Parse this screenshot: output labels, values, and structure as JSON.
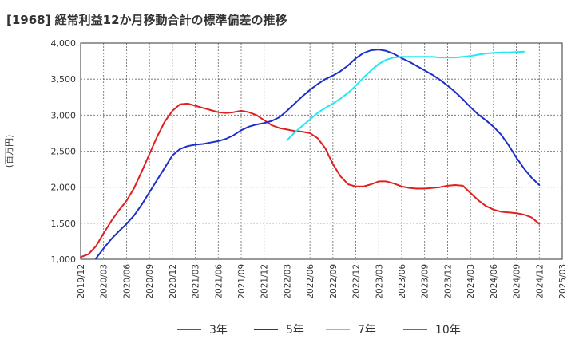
{
  "chart_data": {
    "type": "line",
    "title": "[1968]  経常利益12か月移動合計の標準偏差の推移",
    "ylabel": "(百万円)",
    "xlabel": "",
    "ylim": [
      1000,
      4000
    ],
    "yticks": [
      1000,
      1500,
      2000,
      2500,
      3000,
      3500,
      4000
    ],
    "ytick_labels": [
      "1,000",
      "1,500",
      "2,000",
      "2,500",
      "3,000",
      "3,500",
      "4,000"
    ],
    "xticks": [
      "2019/12",
      "2020/03",
      "2020/06",
      "2020/09",
      "2020/12",
      "2021/03",
      "2021/06",
      "2021/09",
      "2021/12",
      "2022/03",
      "2022/06",
      "2022/09",
      "2022/12",
      "2023/03",
      "2023/06",
      "2023/09",
      "2023/12",
      "2024/03",
      "2024/06",
      "2024/09",
      "2024/12",
      "2025/03"
    ],
    "grid": true,
    "legend_position": "bottom",
    "series": [
      {
        "name": "3年",
        "color": "#e02020",
        "start_month": 0,
        "values": [
          1030,
          1070,
          1180,
          1360,
          1530,
          1680,
          1810,
          1990,
          2220,
          2460,
          2700,
          2910,
          3060,
          3150,
          3160,
          3130,
          3100,
          3070,
          3040,
          3030,
          3040,
          3060,
          3040,
          3000,
          2930,
          2860,
          2820,
          2800,
          2780,
          2770,
          2750,
          2680,
          2540,
          2320,
          2150,
          2040,
          2010,
          2010,
          2040,
          2080,
          2080,
          2050,
          2010,
          1990,
          1980,
          1980,
          1990,
          2000,
          2020,
          2030,
          2020,
          1920,
          1820,
          1740,
          1690,
          1660,
          1650,
          1640,
          1620,
          1580,
          1490
        ]
      },
      {
        "name": "5年",
        "color": "#1c2ecc",
        "start_month": 2,
        "values": [
          1010,
          1150,
          1280,
          1390,
          1490,
          1610,
          1760,
          1930,
          2100,
          2270,
          2440,
          2530,
          2570,
          2590,
          2600,
          2620,
          2640,
          2670,
          2720,
          2790,
          2840,
          2870,
          2890,
          2920,
          2970,
          3060,
          3160,
          3260,
          3350,
          3430,
          3500,
          3550,
          3610,
          3690,
          3790,
          3860,
          3900,
          3910,
          3890,
          3850,
          3790,
          3740,
          3680,
          3620,
          3560,
          3490,
          3410,
          3320,
          3220,
          3110,
          3010,
          2930,
          2840,
          2730,
          2580,
          2410,
          2260,
          2130,
          2030
        ]
      },
      {
        "name": "7年",
        "color": "#22e8f0",
        "start_month": 27,
        "values": [
          2650,
          2760,
          2850,
          2940,
          3030,
          3100,
          3160,
          3230,
          3310,
          3410,
          3520,
          3620,
          3710,
          3770,
          3800,
          3810,
          3810,
          3810,
          3810,
          3810,
          3800,
          3800,
          3800,
          3810,
          3820,
          3840,
          3855,
          3865,
          3870,
          3870,
          3875,
          3880
        ]
      },
      {
        "name": "10年",
        "color": "#2a9a2a",
        "start_month": 0,
        "values": []
      }
    ]
  }
}
